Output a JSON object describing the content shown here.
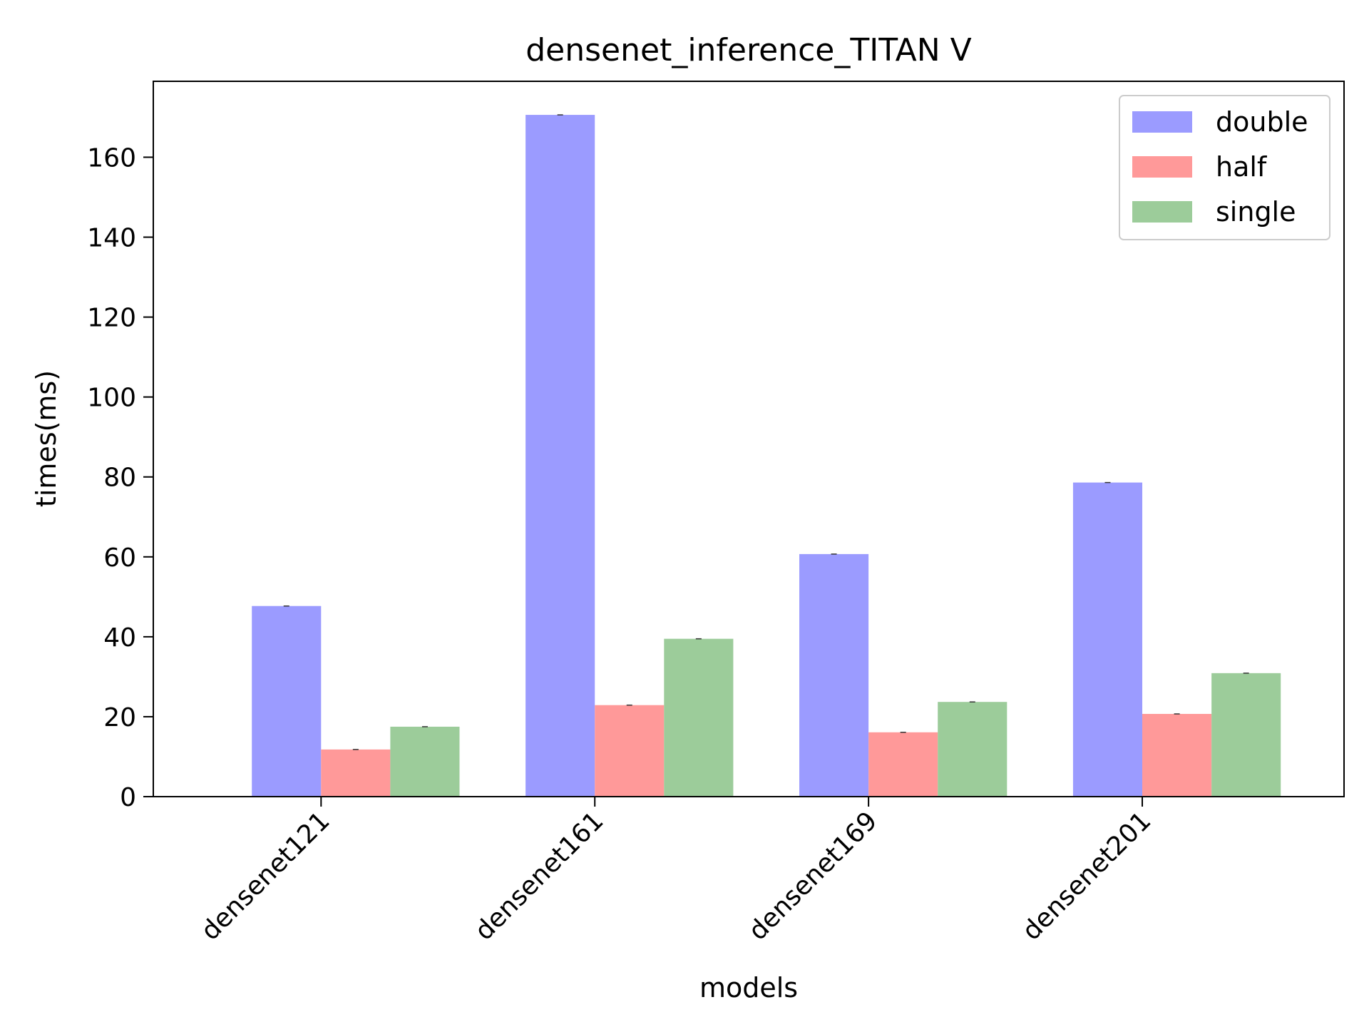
{
  "chart_data": {
    "type": "bar",
    "title": "densenet_inference_TITAN V",
    "xlabel": "models",
    "ylabel": "times(ms)",
    "categories": [
      "densenet121",
      "densenet161",
      "densenet169",
      "densenet201"
    ],
    "series": [
      {
        "name": "double",
        "color": "#9b9bff",
        "values": [
          47.7,
          170.6,
          60.7,
          78.6
        ]
      },
      {
        "name": "half",
        "color": "#ff9999",
        "values": [
          11.8,
          22.9,
          16.1,
          20.7
        ]
      },
      {
        "name": "single",
        "color": "#9ccc9a",
        "values": [
          17.5,
          39.5,
          23.7,
          30.9
        ]
      }
    ],
    "ylim": [
      0,
      179
    ],
    "yticks": [
      0,
      20,
      40,
      60,
      80,
      100,
      120,
      140,
      160
    ],
    "legend": "top-right",
    "grid": false
  }
}
